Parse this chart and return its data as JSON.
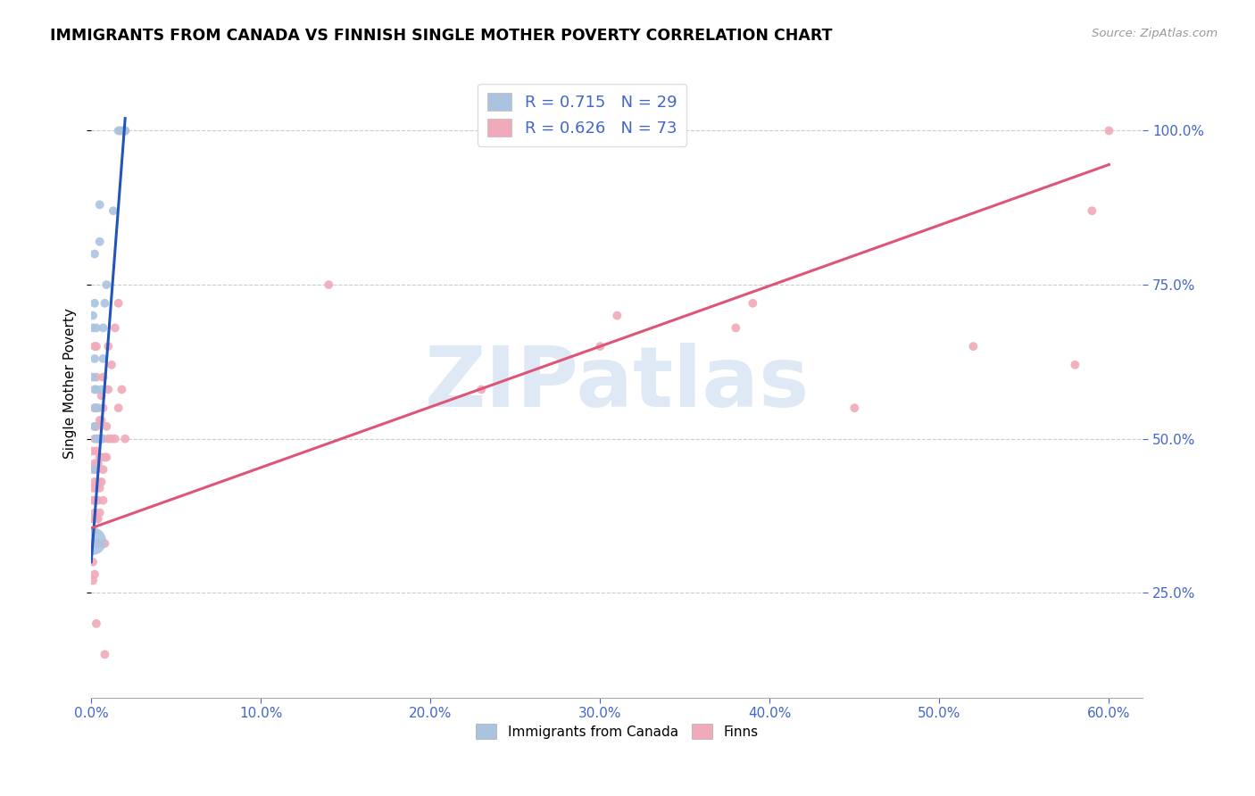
{
  "title": "IMMIGRANTS FROM CANADA VS FINNISH SINGLE MOTHER POVERTY CORRELATION CHART",
  "source": "Source: ZipAtlas.com",
  "ylabel": "Single Mother Poverty",
  "xlim": [
    0.0,
    0.62
  ],
  "ylim": [
    0.08,
    1.1
  ],
  "blue_color": "#aac4e0",
  "pink_color": "#f0aaba",
  "blue_line_color": "#2255bb",
  "pink_line_color": "#dd5577",
  "label_color": "#4466cc",
  "watermark": "ZIPatlas",
  "legend_label_blue": "Immigrants from Canada",
  "legend_label_pink": "Finns",
  "blue_line": [
    [
      0.0,
      0.3
    ],
    [
      0.02,
      1.02
    ]
  ],
  "pink_line": [
    [
      0.0,
      0.355
    ],
    [
      0.6,
      0.945
    ]
  ],
  "blue_points": [
    [
      0.0005,
      0.335
    ],
    [
      0.001,
      0.6
    ],
    [
      0.001,
      0.68
    ],
    [
      0.001,
      0.7
    ],
    [
      0.002,
      0.45
    ],
    [
      0.002,
      0.52
    ],
    [
      0.002,
      0.55
    ],
    [
      0.002,
      0.58
    ],
    [
      0.002,
      0.63
    ],
    [
      0.002,
      0.72
    ],
    [
      0.002,
      0.8
    ],
    [
      0.003,
      0.5
    ],
    [
      0.003,
      0.58
    ],
    [
      0.003,
      0.68
    ],
    [
      0.004,
      0.55
    ],
    [
      0.005,
      0.82
    ],
    [
      0.005,
      0.88
    ],
    [
      0.006,
      0.5
    ],
    [
      0.006,
      0.58
    ],
    [
      0.007,
      0.63
    ],
    [
      0.007,
      0.68
    ],
    [
      0.008,
      0.72
    ],
    [
      0.009,
      0.75
    ],
    [
      0.013,
      0.87
    ],
    [
      0.016,
      1.0
    ],
    [
      0.017,
      1.0
    ],
    [
      0.018,
      1.0
    ],
    [
      0.019,
      1.0
    ],
    [
      0.02,
      1.0
    ]
  ],
  "blue_sizes": [
    500,
    50,
    50,
    50,
    50,
    50,
    50,
    50,
    50,
    50,
    50,
    50,
    50,
    50,
    50,
    50,
    50,
    50,
    50,
    50,
    50,
    50,
    50,
    50,
    50,
    50,
    50,
    50,
    50
  ],
  "pink_points": [
    [
      0.001,
      0.27
    ],
    [
      0.001,
      0.3
    ],
    [
      0.001,
      0.35
    ],
    [
      0.001,
      0.37
    ],
    [
      0.001,
      0.4
    ],
    [
      0.001,
      0.42
    ],
    [
      0.001,
      0.45
    ],
    [
      0.001,
      0.48
    ],
    [
      0.002,
      0.28
    ],
    [
      0.002,
      0.33
    ],
    [
      0.002,
      0.38
    ],
    [
      0.002,
      0.4
    ],
    [
      0.002,
      0.43
    ],
    [
      0.002,
      0.46
    ],
    [
      0.002,
      0.5
    ],
    [
      0.002,
      0.52
    ],
    [
      0.002,
      0.55
    ],
    [
      0.002,
      0.65
    ],
    [
      0.003,
      0.2
    ],
    [
      0.003,
      0.33
    ],
    [
      0.003,
      0.37
    ],
    [
      0.003,
      0.42
    ],
    [
      0.003,
      0.45
    ],
    [
      0.003,
      0.48
    ],
    [
      0.003,
      0.52
    ],
    [
      0.003,
      0.55
    ],
    [
      0.003,
      0.6
    ],
    [
      0.003,
      0.65
    ],
    [
      0.004,
      0.33
    ],
    [
      0.004,
      0.37
    ],
    [
      0.004,
      0.4
    ],
    [
      0.004,
      0.43
    ],
    [
      0.004,
      0.46
    ],
    [
      0.004,
      0.5
    ],
    [
      0.005,
      0.38
    ],
    [
      0.005,
      0.42
    ],
    [
      0.005,
      0.47
    ],
    [
      0.005,
      0.5
    ],
    [
      0.005,
      0.53
    ],
    [
      0.006,
      0.43
    ],
    [
      0.006,
      0.47
    ],
    [
      0.006,
      0.5
    ],
    [
      0.006,
      0.53
    ],
    [
      0.006,
      0.57
    ],
    [
      0.007,
      0.4
    ],
    [
      0.007,
      0.45
    ],
    [
      0.007,
      0.5
    ],
    [
      0.007,
      0.55
    ],
    [
      0.007,
      0.6
    ],
    [
      0.008,
      0.15
    ],
    [
      0.008,
      0.33
    ],
    [
      0.008,
      0.47
    ],
    [
      0.009,
      0.47
    ],
    [
      0.009,
      0.52
    ],
    [
      0.01,
      0.5
    ],
    [
      0.01,
      0.58
    ],
    [
      0.01,
      0.65
    ],
    [
      0.012,
      0.5
    ],
    [
      0.012,
      0.62
    ],
    [
      0.014,
      0.5
    ],
    [
      0.014,
      0.68
    ],
    [
      0.016,
      0.55
    ],
    [
      0.016,
      0.72
    ],
    [
      0.018,
      0.58
    ],
    [
      0.02,
      0.5
    ],
    [
      0.02,
      1.0
    ],
    [
      0.14,
      0.75
    ],
    [
      0.23,
      0.58
    ],
    [
      0.3,
      0.65
    ],
    [
      0.31,
      0.7
    ],
    [
      0.38,
      0.68
    ],
    [
      0.39,
      0.72
    ],
    [
      0.45,
      0.55
    ],
    [
      0.52,
      0.65
    ],
    [
      0.58,
      0.62
    ],
    [
      0.6,
      1.0
    ],
    [
      0.59,
      0.87
    ]
  ],
  "pink_sizes": [
    50,
    50,
    50,
    50,
    50,
    50,
    50,
    50,
    50,
    50,
    50,
    50,
    50,
    50,
    50,
    50,
    50,
    50,
    50,
    50,
    50,
    50,
    50,
    50,
    50,
    50,
    50,
    50,
    50,
    50,
    50,
    50,
    50,
    50,
    50,
    50,
    50,
    50,
    50,
    50,
    50,
    50,
    50,
    50,
    50,
    50,
    50,
    50,
    50,
    50,
    50,
    50,
    50,
    50,
    50,
    50,
    50,
    50,
    50,
    50,
    50,
    50,
    50,
    50,
    50,
    50,
    50,
    50,
    50,
    50,
    50,
    50,
    50,
    50,
    50,
    50,
    50
  ],
  "yticks": [
    0.25,
    0.5,
    0.75,
    1.0
  ],
  "xticks": [
    0.0,
    0.1,
    0.2,
    0.3,
    0.4,
    0.5,
    0.6
  ]
}
